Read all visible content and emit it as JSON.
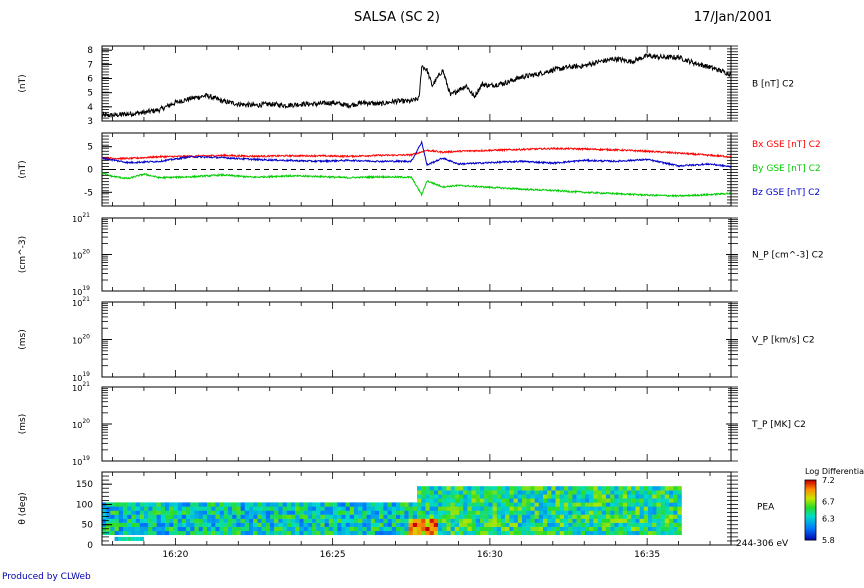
{
  "header": {
    "title": "SALSA (SC 2)",
    "date": "17/Jan/2001"
  },
  "footer": {
    "credit": "Produced by CLWeb"
  },
  "colors": {
    "axes": "#000000",
    "bx": "#ff0000",
    "by": "#00cc00",
    "bz": "#0000cc",
    "b_total": "#000000",
    "credit": "#0000aa"
  },
  "chart_data": [
    {
      "type": "line",
      "panel": "b-total",
      "ylabel": "(nT)",
      "right_label": "B [nT] C2",
      "ylim": [
        3,
        8.3
      ],
      "yticks": [
        "3",
        "4",
        "5",
        "6",
        "7",
        "8"
      ],
      "xlim": [
        "16:17:40",
        "16:37:40"
      ],
      "series": [
        {
          "name": "B [nT] C2",
          "color": "#000000",
          "x": [
            "16:17:40",
            "16:18:00",
            "16:19:00",
            "16:19:30",
            "16:20:00",
            "16:20:30",
            "16:21:00",
            "16:21:30",
            "16:22:00",
            "16:22:30",
            "16:23:00",
            "16:23:30",
            "16:24:00",
            "16:24:30",
            "16:25:00",
            "16:25:30",
            "16:26:00",
            "16:26:30",
            "16:27:00",
            "16:27:30",
            "16:27:45",
            "16:27:50",
            "16:28:00",
            "16:28:10",
            "16:28:30",
            "16:28:45",
            "16:29:00",
            "16:29:15",
            "16:29:30",
            "16:29:45",
            "16:30:00",
            "16:30:30",
            "16:31:00",
            "16:31:30",
            "16:32:00",
            "16:32:30",
            "16:33:00",
            "16:33:30",
            "16:34:00",
            "16:34:30",
            "16:35:00",
            "16:35:30",
            "16:36:00",
            "16:36:30",
            "16:37:00",
            "16:37:40"
          ],
          "values": [
            3.4,
            3.4,
            3.6,
            3.8,
            4.3,
            4.6,
            4.8,
            4.4,
            4.2,
            4.1,
            4.2,
            4.1,
            4.2,
            4.2,
            4.3,
            4.1,
            4.3,
            4.2,
            4.4,
            4.4,
            4.6,
            6.9,
            6.6,
            5.5,
            6.6,
            4.8,
            5.2,
            5.5,
            4.7,
            5.6,
            5.5,
            5.7,
            6.1,
            6.3,
            6.6,
            6.8,
            6.9,
            7.2,
            7.4,
            7.2,
            7.6,
            7.5,
            7.5,
            7.1,
            6.8,
            6.3
          ]
        }
      ]
    },
    {
      "type": "line",
      "panel": "b-gse",
      "ylabel": "(nT)",
      "ylim": [
        -8,
        8
      ],
      "yticks": [
        "-5",
        "0",
        "5"
      ],
      "zero_line": "dashed",
      "xlim": [
        "16:17:40",
        "16:37:40"
      ],
      "series": [
        {
          "name": "Bx GSE [nT] C2",
          "color": "#ff0000",
          "x": [
            "16:17:40",
            "16:18:30",
            "16:19:30",
            "16:20:30",
            "16:21:30",
            "16:22:30",
            "16:23:30",
            "16:24:30",
            "16:25:30",
            "16:26:30",
            "16:27:30",
            "16:28:00",
            "16:28:30",
            "16:29:00",
            "16:30:00",
            "16:31:00",
            "16:32:00",
            "16:33:00",
            "16:34:00",
            "16:35:00",
            "16:36:00",
            "16:37:00",
            "16:37:40"
          ],
          "values": [
            2.5,
            2.4,
            2.8,
            2.9,
            3.1,
            2.9,
            3.0,
            3.0,
            2.9,
            3.1,
            3.2,
            4.2,
            3.8,
            4.0,
            4.2,
            4.4,
            4.6,
            4.5,
            4.3,
            4.0,
            3.6,
            3.1,
            2.8
          ]
        },
        {
          "name": "By GSE [nT] C2",
          "color": "#00cc00",
          "x": [
            "16:17:40",
            "16:18:00",
            "16:18:30",
            "16:19:00",
            "16:19:30",
            "16:20:30",
            "16:21:30",
            "16:22:30",
            "16:23:30",
            "16:24:30",
            "16:25:30",
            "16:26:30",
            "16:27:30",
            "16:27:50",
            "16:28:00",
            "16:28:30",
            "16:29:00",
            "16:30:00",
            "16:31:00",
            "16:32:00",
            "16:33:00",
            "16:34:00",
            "16:35:00",
            "16:36:00",
            "16:37:00",
            "16:37:40"
          ],
          "values": [
            -0.8,
            -1.5,
            -2.0,
            -1.0,
            -1.8,
            -1.6,
            -1.2,
            -1.7,
            -1.4,
            -1.5,
            -1.8,
            -1.6,
            -1.7,
            -5.5,
            -2.5,
            -3.8,
            -3.5,
            -3.9,
            -4.3,
            -4.6,
            -5.0,
            -5.3,
            -5.6,
            -5.8,
            -5.5,
            -5.2
          ]
        },
        {
          "name": "Bz GSE [nT] C2",
          "color": "#0000cc",
          "x": [
            "16:17:40",
            "16:18:30",
            "16:19:30",
            "16:20:30",
            "16:21:30",
            "16:22:30",
            "16:23:30",
            "16:24:30",
            "16:25:30",
            "16:26:30",
            "16:27:30",
            "16:27:50",
            "16:28:00",
            "16:28:30",
            "16:29:00",
            "16:30:00",
            "16:31:00",
            "16:32:00",
            "16:33:00",
            "16:34:00",
            "16:35:00",
            "16:36:00",
            "16:37:00",
            "16:37:40"
          ],
          "values": [
            2.5,
            1.5,
            1.8,
            2.8,
            2.6,
            2.2,
            2.0,
            1.8,
            2.0,
            1.8,
            1.8,
            6.0,
            1.0,
            2.5,
            1.2,
            1.5,
            1.8,
            1.4,
            2.0,
            1.8,
            2.2,
            0.8,
            1.2,
            0.6
          ]
        }
      ]
    },
    {
      "type": "line",
      "panel": "n-p",
      "ylabel": "(cm^-3)",
      "right_label": "N_P [cm^-3] C2",
      "scale": "log",
      "ylim": [
        1e+19,
        1e+21
      ],
      "tick_labels": [
        {
          "base": "10",
          "exp": "21"
        },
        {
          "base": "10",
          "exp": "20"
        },
        {
          "base": "10",
          "exp": "19"
        }
      ],
      "series": []
    },
    {
      "type": "line",
      "panel": "v-p",
      "ylabel": "(ms)",
      "right_label": "V_P [km/s] C2",
      "scale": "log",
      "ylim": [
        1e+19,
        1e+21
      ],
      "tick_labels": [
        {
          "base": "10",
          "exp": "21"
        },
        {
          "base": "10",
          "exp": "20"
        },
        {
          "base": "10",
          "exp": "19"
        }
      ],
      "series": []
    },
    {
      "type": "line",
      "panel": "t-p",
      "ylabel": "(ms)",
      "right_label": "T_P [MK] C2",
      "scale": "log",
      "ylim": [
        1e+19,
        1e+21
      ],
      "tick_labels": [
        {
          "base": "10",
          "exp": "21"
        },
        {
          "base": "10",
          "exp": "20"
        },
        {
          "base": "10",
          "exp": "19"
        }
      ],
      "series": []
    },
    {
      "type": "heatmap",
      "panel": "pea",
      "ylabel": "θ (deg)",
      "right_label": "PEA",
      "energy_label": "244-306 eV",
      "yticks": [
        "0",
        "50",
        "100",
        "150"
      ],
      "ylim": [
        0,
        180
      ],
      "xlim": [
        "16:17:40",
        "16:37:40"
      ],
      "xticks": [
        "16:20",
        "16:25",
        "16:30",
        "16:35"
      ],
      "colorbar": {
        "title": "Log Differential",
        "ticks": [
          "7.2",
          "6.7",
          "6.3",
          "5.8"
        ],
        "range": [
          5.8,
          7.2
        ]
      },
      "data_extent": {
        "t_start": "16:17:40",
        "t_end": "16:36:00"
      },
      "description_rows": [
        {
          "theta_range": [
            25,
            105
          ],
          "t_start": "16:17:40",
          "t_end": "16:27:40",
          "level": 6.35
        },
        {
          "theta_range": [
            25,
            145
          ],
          "t_start": "16:27:40",
          "t_end": "16:36:00",
          "level": 6.45
        },
        {
          "theta_range": [
            10,
            60
          ],
          "t_start": "16:27:20",
          "t_end": "16:28:20",
          "level": 6.9
        }
      ]
    }
  ]
}
